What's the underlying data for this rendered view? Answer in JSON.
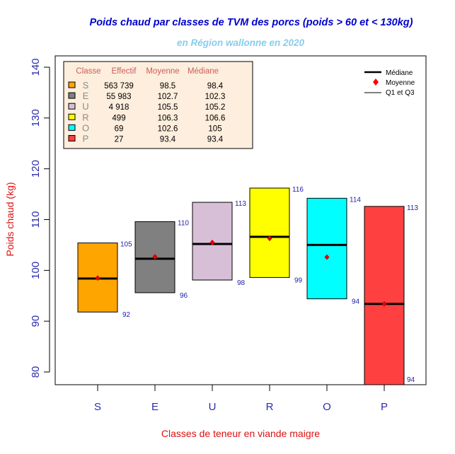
{
  "chart_data": {
    "type": "boxplot",
    "title": "Poids chaud par classes de TVM des porcs (poids > 60 et < 130kg)",
    "subtitle": "en Région wallonne en 2020",
    "xlabel": "Classes de teneur en viande maigre",
    "ylabel": "Poids chaud (kg)",
    "ylim": [
      77.5,
      142.5
    ],
    "yticks": [
      80,
      90,
      100,
      110,
      120,
      130,
      140
    ],
    "ytick_labels": [
      "80",
      "90",
      "100",
      "110",
      "120",
      "130",
      "140"
    ],
    "categories": [
      "S",
      "E",
      "U",
      "R",
      "O",
      "P"
    ],
    "boxes": [
      {
        "class": "S",
        "color": "#FFA500",
        "q1": 91.8,
        "q3": 105.4,
        "median": 98.4,
        "mean": 98.5,
        "q1_label": "92",
        "q3_label": "105"
      },
      {
        "class": "E",
        "color": "#808080",
        "q1": 95.6,
        "q3": 109.6,
        "median": 102.3,
        "mean": 102.7,
        "q1_label": "96",
        "q3_label": "110"
      },
      {
        "class": "U",
        "color": "#D8BFD8",
        "q1": 98.1,
        "q3": 113.4,
        "median": 105.2,
        "mean": 105.5,
        "q1_label": "98",
        "q3_label": "113"
      },
      {
        "class": "R",
        "color": "#FFFF00",
        "q1": 98.6,
        "q3": 116.2,
        "median": 106.6,
        "mean": 106.3,
        "q1_label": "99",
        "q3_label": "116"
      },
      {
        "class": "O",
        "color": "#00FFFF",
        "q1": 94.4,
        "q3": 114.2,
        "median": 105.0,
        "mean": 102.6,
        "q1_label": "94",
        "q3_label": "114"
      },
      {
        "class": "P",
        "color": "#FF4040",
        "q1": null,
        "q3": 112.6,
        "median": 93.4,
        "mean": 93.4,
        "q1_label": "94",
        "q3_label": "113"
      }
    ],
    "summary_table": {
      "headers": [
        "Classe",
        "Effectif",
        "Moyenne",
        "Médiane"
      ],
      "rows": [
        {
          "class": "S",
          "color": "#FFA500",
          "effectif": "563 739",
          "moyenne": "98.5",
          "mediane": "98.4"
        },
        {
          "class": "E",
          "color": "#808080",
          "effectif": "55 983",
          "moyenne": "102.7",
          "mediane": "102.3"
        },
        {
          "class": "U",
          "color": "#D8BFD8",
          "effectif": "4 918",
          "moyenne": "105.5",
          "mediane": "105.2"
        },
        {
          "class": "R",
          "color": "#FFFF00",
          "effectif": "499",
          "moyenne": "106.3",
          "mediane": "106.6"
        },
        {
          "class": "O",
          "color": "#00FFFF",
          "effectif": "69",
          "moyenne": "102.6",
          "mediane": "105"
        },
        {
          "class": "P",
          "color": "#FF4040",
          "effectif": "27",
          "moyenne": "93.4",
          "mediane": "93.4"
        }
      ]
    },
    "legend": {
      "placement": "top-right",
      "items": [
        "Médiane",
        "Moyenne",
        "Q1 et Q3"
      ],
      "mean_color": "#FF0000"
    },
    "grid": false
  }
}
